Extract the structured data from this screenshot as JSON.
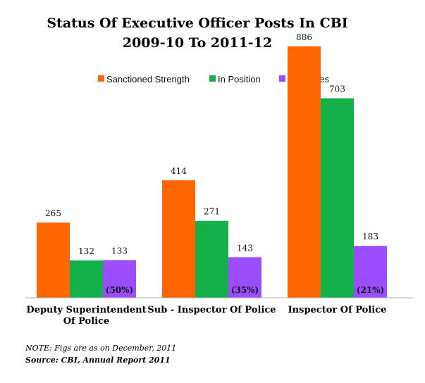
{
  "chart_data": {
    "type": "bar",
    "title": "Status Of Executive Officer Posts In CBI",
    "subtitle": "2009-10 To 2011-12",
    "categories": [
      "Deputy Superintendent Of Police",
      "Sub - Inspector Of Police",
      "Inspector Of Police"
    ],
    "category_lines": [
      [
        "Deputy Superintendent",
        "Of Police"
      ],
      [
        "Sub - Inspector Of Police"
      ],
      [
        "Inspector Of Police"
      ]
    ],
    "series": [
      {
        "name": "Sanctioned Strength",
        "color": "#ff6600",
        "values": [
          265,
          414,
          886
        ]
      },
      {
        "name": "In Position",
        "color": "#14b14b",
        "values": [
          132,
          271,
          703
        ]
      },
      {
        "name": "Vacancies",
        "color": "#9b4dff",
        "values": [
          133,
          143,
          183
        ]
      }
    ],
    "vacancy_percentages": [
      "(50%)",
      "(35%)",
      "(21%)"
    ],
    "legend_position": "top",
    "ylim": [
      0,
      950
    ],
    "grid": false,
    "xlabel": "",
    "ylabel": ""
  },
  "footer": {
    "note": "NOTE: Figs are as on December, 2011",
    "source": "Source: CBI, Annual Report 2011"
  }
}
